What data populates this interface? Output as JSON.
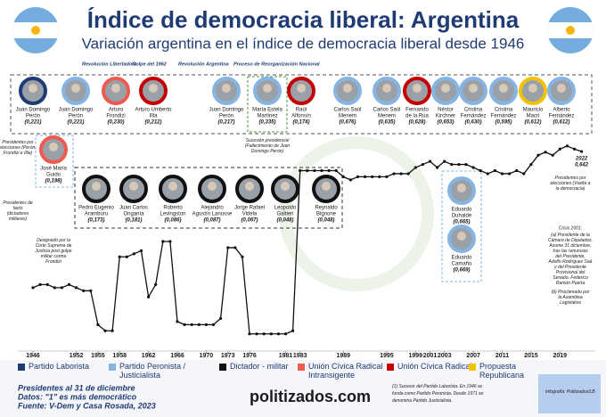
{
  "chart_data": {
    "type": "line",
    "title": "Índice de democracia liberal: Argentina",
    "subtitle": "Variación argentina en el índice de democracia liberal desde 1946",
    "x": [
      1946,
      1947,
      1948,
      1949,
      1950,
      1951,
      1952,
      1953,
      1954,
      1955,
      1956,
      1957,
      1958,
      1959,
      1960,
      1961,
      1962,
      1963,
      1964,
      1965,
      1966,
      1967,
      1968,
      1969,
      1970,
      1971,
      1972,
      1973,
      1974,
      1975,
      1976,
      1977,
      1978,
      1979,
      1980,
      1981,
      1982,
      1983,
      1984,
      1985,
      1986,
      1987,
      1988,
      1989,
      1990,
      1991,
      1992,
      1993,
      1994,
      1995,
      1996,
      1997,
      1998,
      1999,
      2000,
      2001,
      2002,
      2003,
      2004,
      2005,
      2006,
      2007,
      2008,
      2009,
      2010,
      2011,
      2012,
      2013,
      2014,
      2015,
      2016,
      2017,
      2018,
      2019,
      2020,
      2021,
      2022
    ],
    "values": [
      0.2,
      0.21,
      0.21,
      0.2,
      0.2,
      0.21,
      0.2,
      0.19,
      0.19,
      0.08,
      0.06,
      0.06,
      0.3,
      0.3,
      0.31,
      0.32,
      0.17,
      0.21,
      0.35,
      0.35,
      0.09,
      0.08,
      0.08,
      0.08,
      0.08,
      0.08,
      0.1,
      0.33,
      0.33,
      0.3,
      0.05,
      0.05,
      0.05,
      0.05,
      0.05,
      0.05,
      0.06,
      0.58,
      0.58,
      0.58,
      0.58,
      0.58,
      0.58,
      0.56,
      0.55,
      0.56,
      0.56,
      0.56,
      0.56,
      0.56,
      0.57,
      0.57,
      0.57,
      0.59,
      0.6,
      0.61,
      0.59,
      0.61,
      0.6,
      0.6,
      0.6,
      0.59,
      0.58,
      0.57,
      0.58,
      0.57,
      0.57,
      0.58,
      0.57,
      0.6,
      0.63,
      0.64,
      0.63,
      0.65,
      0.66,
      0.65,
      0.642
    ],
    "value_labels": [
      null,
      null,
      null,
      null,
      null,
      null,
      null,
      null,
      null,
      null,
      null,
      null,
      null,
      null,
      null,
      null,
      null,
      null,
      null,
      null,
      null,
      null,
      null,
      null,
      null,
      null,
      null,
      null,
      null,
      null,
      null,
      null,
      null,
      null,
      null,
      null,
      null,
      null,
      null,
      null,
      null,
      null,
      null,
      null,
      null,
      null,
      null,
      null,
      null,
      null,
      null,
      null,
      null,
      null,
      null,
      null,
      null,
      null,
      null,
      null,
      null,
      null,
      null,
      null,
      null,
      null,
      null,
      null,
      null,
      null,
      null,
      null,
      null,
      null,
      null,
      null,
      "0,642"
    ],
    "color": "#111111",
    "xlim": [
      1943,
      2025
    ],
    "ylim": [
      0,
      0.7
    ],
    "xticks": [
      1946,
      1952,
      1955,
      1958,
      1962,
      1966,
      1970,
      1973,
      1976,
      1981,
      1983,
      1989,
      1995,
      1999,
      2001,
      2003,
      2007,
      2011,
      2015,
      2019
    ],
    "eras": [
      "Revolución Libertadora",
      "Golpe del 1962",
      "Revolución Argentina",
      "Proceso de Reorganización Nacional"
    ],
    "legend": [
      {
        "name": "Partido Laborista",
        "color": "#1f3b73"
      },
      {
        "name": "Partido Peronista / Justicialista",
        "color": "#86b4e3"
      },
      {
        "name": "Dictador - militar",
        "color": "#111111"
      },
      {
        "name": "Unión Cívica Radical Intransigente",
        "color": "#ee5a4f"
      },
      {
        "name": "Unión Cívica Radical",
        "color": "#c40000"
      },
      {
        "name": "Propuesta Republicana",
        "color": "#f2c200"
      }
    ]
  },
  "presidents": [
    {
      "name": [
        "Juan Domingo",
        "Perón"
      ],
      "index": "(0,221)",
      "color": "#1f3b73"
    },
    {
      "name": [
        "Juan Domingo",
        "Perón"
      ],
      "index": "(0,221)",
      "color": "#86b4e3"
    },
    {
      "name": [
        "Arturo",
        "Frondizi"
      ],
      "index": "(0,230)",
      "color": "#ee5a4f"
    },
    {
      "name": [
        "Arturo Umberto",
        "Illia"
      ],
      "index": "(0,212)",
      "color": "#c40000"
    },
    {
      "name": [
        "Juan Domingo",
        "Perón"
      ],
      "index": "(0,217)",
      "color": "#86b4e3"
    },
    {
      "name": [
        "María Estela",
        "Martínez"
      ],
      "index": "(0,335)",
      "color": "#86b4e3"
    },
    {
      "name": [
        "Raúl",
        "Alfonsín"
      ],
      "index": "(0,174)",
      "color": "#c40000"
    },
    {
      "name": [
        "Carlos Saúl",
        "Menem"
      ],
      "index": "(0,676)",
      "color": "#86b4e3"
    },
    {
      "name": [
        "Carlos Saúl",
        "Menem"
      ],
      "index": "(0,635)",
      "color": "#86b4e3"
    },
    {
      "name": [
        "Fernando",
        "de la Rúa"
      ],
      "index": "(0,628)",
      "color": "#c40000"
    },
    {
      "name": [
        "Néstor",
        "Kirchner"
      ],
      "index": "(0,653)",
      "color": "#86b4e3"
    },
    {
      "name": [
        "Cristina",
        "Fernández"
      ],
      "index": "(0,630)",
      "color": "#86b4e3"
    },
    {
      "name": [
        "Cristina",
        "Fernández"
      ],
      "index": "(0,595)",
      "color": "#86b4e3"
    },
    {
      "name": [
        "Mauricio",
        "Macri"
      ],
      "index": "(0,612)",
      "color": "#f2c200"
    },
    {
      "name": [
        "Alberto",
        "Fernández"
      ],
      "index": "(0,612)",
      "color": "#86b4e3"
    },
    {
      "name": [
        "José María",
        "Guido"
      ],
      "index": "(0,198)",
      "color": "#ee5a4f"
    },
    {
      "name": [
        "Pedro Eugenio",
        "Aramburu"
      ],
      "index": "(0,173)",
      "color": "#111111"
    },
    {
      "name": [
        "Juan Carlos",
        "Onganía"
      ],
      "index": "(0,181)",
      "color": "#111111"
    },
    {
      "name": [
        "Roberto",
        "Levingston"
      ],
      "index": "(0,086)",
      "color": "#111111"
    },
    {
      "name": [
        "Alejandro",
        "Agustín Lanusse"
      ],
      "index": "(0,087)",
      "color": "#111111"
    },
    {
      "name": [
        "Jorge Rafael",
        "Videla"
      ],
      "index": "(0,067)",
      "color": "#111111"
    },
    {
      "name": [
        "Leopoldo",
        "Galtieri"
      ],
      "index": "(0,048)",
      "color": "#111111"
    },
    {
      "name": [
        "Reynaldo",
        "Bignone"
      ],
      "index": "(0,048)",
      "color": "#111111"
    },
    {
      "name": [
        "Eduardo",
        "Duhalde"
      ],
      "index": "(0,665)",
      "color": "#86b4e3"
    },
    {
      "name": [
        "Eduardo",
        "Camaño"
      ],
      "index": "(0,669)",
      "color": "#86b4e3"
    }
  ],
  "notes": {
    "elected": "Presidentes por elecciones (Perón, Frondizi e Illia)",
    "de_facto": "Presidentes de facto (dictadores militares)",
    "guido": "Designado por la Corte Suprema de Justicia post golpe militar contra Frondizi",
    "succession": "Sucesión presidencial (Fallecimiento de Juan Domingo Perón)",
    "democracy": "Presidentes por elecciones (Vuelta a la democracia)",
    "crisis_title": "Crisis 2001:",
    "crisis_a": "(a) Presidente de la Cámara de Diputados. Asume 31 diciembre, tras las renuncias del Presidente, Adolfo Rodríguez Saá y del Presidente Provisional del Senado, Federico Ramón Puerta",
    "crisis_b": "(b) Proclamado por la Asamblea Legislativa"
  },
  "footer": {
    "date_note": "Presidentes al 31 de diciembre",
    "data_note": "Datos: \"1\" es más democrático",
    "source": "Fuente: V-Dem y Casa Rosada, 2023",
    "brand": "politizados.com",
    "footnote": "(1) Sucesor del Partido Laborista. En 1946 se funda como Partido Peronista. Desde 1971 se denomina Partido Justicialista.",
    "credit": "Infografía: Politizados/LB"
  }
}
